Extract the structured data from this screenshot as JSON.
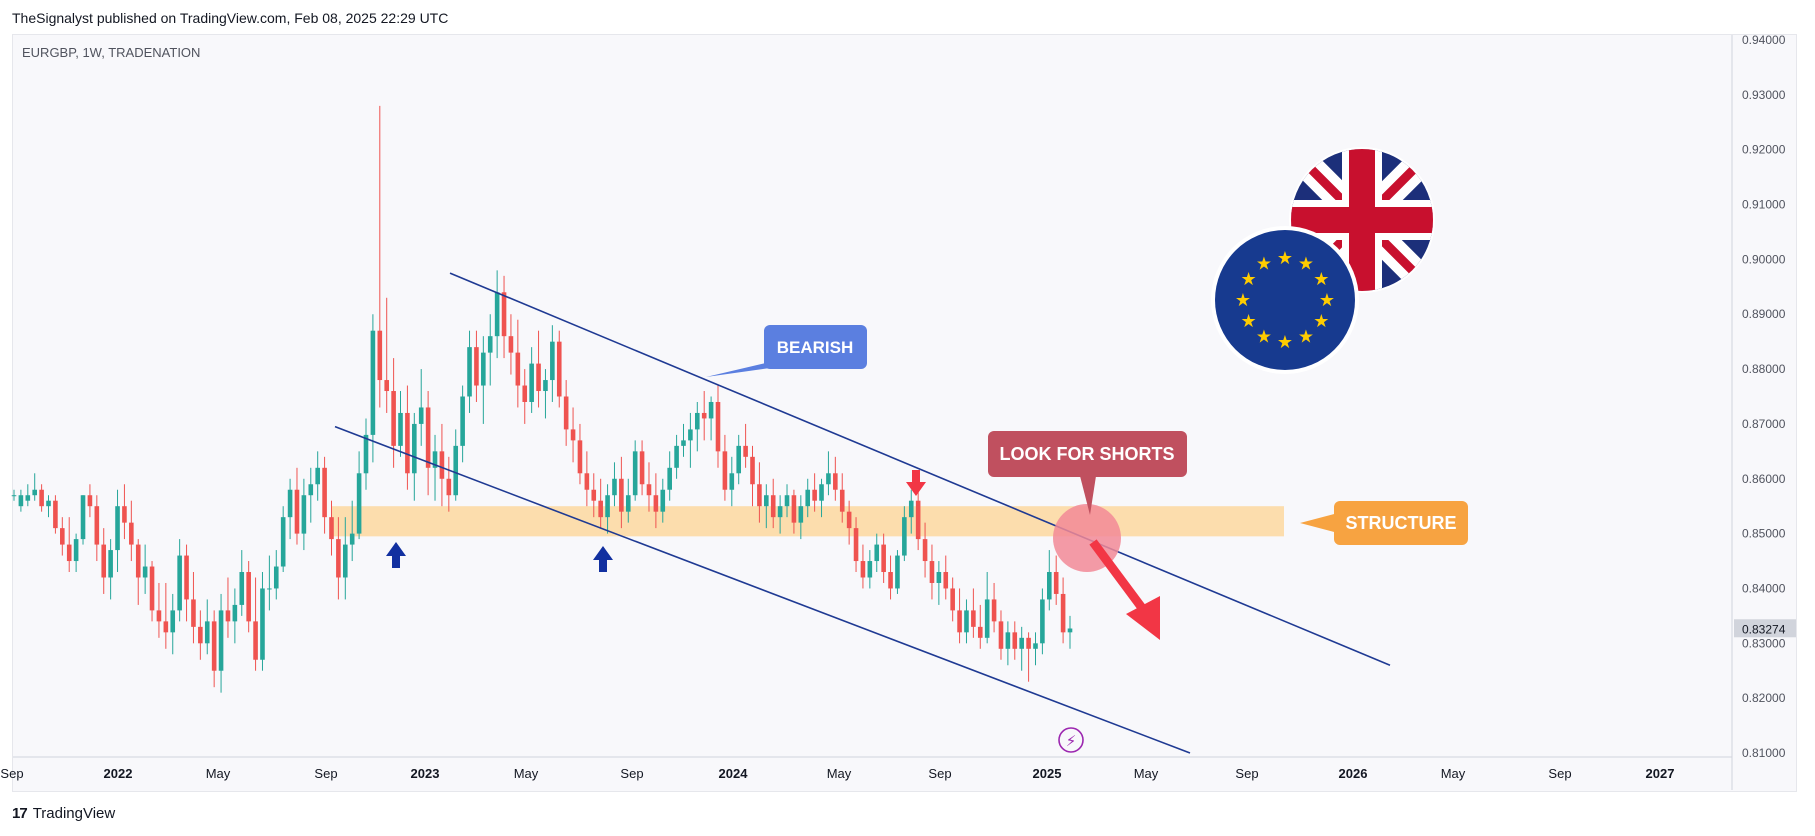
{
  "header": {
    "text": "TheSignalyst published on TradingView.com, Feb 08, 2025 22:29 UTC"
  },
  "symbol": {
    "text": "EURGBP, 1W, TRADENATION"
  },
  "footer": {
    "logo": "17",
    "brand": "TradingView"
  },
  "colors": {
    "up": "#26a69a",
    "down": "#ef5350",
    "channel": "#1f3a93",
    "structure": "#fcd9a4",
    "bearish_box": "#5b7fe0",
    "shorts_box": "#c0505f",
    "structure_label": "#f7a341",
    "arrow_red": "#f23645",
    "arrow_blue": "#1230a0"
  },
  "annotations": {
    "bearish": "BEARISH",
    "look_for_shorts": "LOOK FOR SHORTS",
    "structure": "STRUCTURE"
  },
  "chart_data": {
    "type": "candlestick",
    "title": "EURGBP, 1W, TRADENATION",
    "y_ticks": [
      "0.94000",
      "0.93000",
      "0.92000",
      "0.91000",
      "0.90000",
      "0.89000",
      "0.88000",
      "0.87000",
      "0.86000",
      "0.85000",
      "0.84000",
      "0.83000",
      "0.82000",
      "0.81000"
    ],
    "x_ticks": [
      "Sep",
      "2022",
      "May",
      "Sep",
      "2023",
      "May",
      "Sep",
      "2024",
      "May",
      "Sep",
      "2025",
      "May",
      "Sep",
      "2026",
      "May",
      "Sep",
      "2027"
    ],
    "last_price": "0.83274",
    "ylim": [
      0.81,
      0.94
    ],
    "structure_zone": [
      0.8495,
      0.855
    ],
    "channel_upper": {
      "from": [
        "2023-01",
        0.8975
      ],
      "to": [
        "2025-12",
        0.826
      ]
    },
    "channel_lower": {
      "from": [
        "2022-09",
        0.8695
      ],
      "to": [
        "2025-05",
        0.81
      ]
    },
    "candles": [
      [
        0.857,
        0.858,
        0.856,
        0.857
      ],
      [
        0.855,
        0.858,
        0.854,
        0.857
      ],
      [
        0.856,
        0.859,
        0.855,
        0.857
      ],
      [
        0.857,
        0.861,
        0.856,
        0.858
      ],
      [
        0.858,
        0.859,
        0.854,
        0.855
      ],
      [
        0.855,
        0.857,
        0.853,
        0.856
      ],
      [
        0.856,
        0.857,
        0.85,
        0.851
      ],
      [
        0.851,
        0.853,
        0.846,
        0.848
      ],
      [
        0.848,
        0.853,
        0.843,
        0.845
      ],
      [
        0.845,
        0.85,
        0.843,
        0.849
      ],
      [
        0.849,
        0.857,
        0.848,
        0.857
      ],
      [
        0.857,
        0.859,
        0.853,
        0.855
      ],
      [
        0.855,
        0.857,
        0.845,
        0.848
      ],
      [
        0.848,
        0.851,
        0.839,
        0.842
      ],
      [
        0.842,
        0.849,
        0.838,
        0.847
      ],
      [
        0.847,
        0.858,
        0.843,
        0.855
      ],
      [
        0.855,
        0.859,
        0.849,
        0.852
      ],
      [
        0.852,
        0.856,
        0.845,
        0.848
      ],
      [
        0.848,
        0.849,
        0.837,
        0.842
      ],
      [
        0.842,
        0.848,
        0.839,
        0.844
      ],
      [
        0.844,
        0.845,
        0.834,
        0.836
      ],
      [
        0.836,
        0.841,
        0.831,
        0.834
      ],
      [
        0.834,
        0.841,
        0.829,
        0.832
      ],
      [
        0.832,
        0.839,
        0.828,
        0.836
      ],
      [
        0.836,
        0.849,
        0.834,
        0.846
      ],
      [
        0.846,
        0.848,
        0.834,
        0.838
      ],
      [
        0.838,
        0.843,
        0.83,
        0.833
      ],
      [
        0.833,
        0.836,
        0.827,
        0.83
      ],
      [
        0.83,
        0.838,
        0.828,
        0.834
      ],
      [
        0.834,
        0.836,
        0.822,
        0.825
      ],
      [
        0.825,
        0.839,
        0.821,
        0.836
      ],
      [
        0.836,
        0.842,
        0.831,
        0.834
      ],
      [
        0.834,
        0.84,
        0.83,
        0.837
      ],
      [
        0.837,
        0.847,
        0.835,
        0.843
      ],
      [
        0.843,
        0.845,
        0.832,
        0.834
      ],
      [
        0.834,
        0.842,
        0.825,
        0.827
      ],
      [
        0.827,
        0.843,
        0.825,
        0.84
      ],
      [
        0.84,
        0.846,
        0.836,
        0.84
      ],
      [
        0.84,
        0.847,
        0.838,
        0.844
      ],
      [
        0.844,
        0.855,
        0.843,
        0.853
      ],
      [
        0.853,
        0.86,
        0.849,
        0.858
      ],
      [
        0.858,
        0.862,
        0.848,
        0.85
      ],
      [
        0.85,
        0.86,
        0.847,
        0.857
      ],
      [
        0.857,
        0.862,
        0.852,
        0.859
      ],
      [
        0.859,
        0.865,
        0.856,
        0.862
      ],
      [
        0.862,
        0.864,
        0.85,
        0.853
      ],
      [
        0.853,
        0.856,
        0.846,
        0.849
      ],
      [
        0.849,
        0.853,
        0.838,
        0.842
      ],
      [
        0.842,
        0.853,
        0.838,
        0.848
      ],
      [
        0.848,
        0.856,
        0.845,
        0.85
      ],
      [
        0.85,
        0.865,
        0.849,
        0.861
      ],
      [
        0.861,
        0.871,
        0.858,
        0.868
      ],
      [
        0.868,
        0.89,
        0.863,
        0.887
      ],
      [
        0.887,
        0.928,
        0.873,
        0.878
      ],
      [
        0.878,
        0.893,
        0.872,
        0.876
      ],
      [
        0.876,
        0.882,
        0.862,
        0.866
      ],
      [
        0.866,
        0.876,
        0.864,
        0.872
      ],
      [
        0.872,
        0.877,
        0.858,
        0.861
      ],
      [
        0.861,
        0.872,
        0.856,
        0.87
      ],
      [
        0.87,
        0.88,
        0.866,
        0.873
      ],
      [
        0.873,
        0.876,
        0.857,
        0.862
      ],
      [
        0.862,
        0.868,
        0.856,
        0.865
      ],
      [
        0.865,
        0.87,
        0.855,
        0.86
      ],
      [
        0.86,
        0.864,
        0.854,
        0.857
      ],
      [
        0.857,
        0.869,
        0.856,
        0.866
      ],
      [
        0.866,
        0.877,
        0.863,
        0.875
      ],
      [
        0.875,
        0.887,
        0.872,
        0.884
      ],
      [
        0.884,
        0.887,
        0.874,
        0.877
      ],
      [
        0.877,
        0.886,
        0.87,
        0.883
      ],
      [
        0.883,
        0.89,
        0.877,
        0.886
      ],
      [
        0.886,
        0.898,
        0.882,
        0.894
      ],
      [
        0.894,
        0.897,
        0.882,
        0.886
      ],
      [
        0.886,
        0.89,
        0.879,
        0.883
      ],
      [
        0.883,
        0.889,
        0.873,
        0.877
      ],
      [
        0.877,
        0.88,
        0.87,
        0.874
      ],
      [
        0.874,
        0.884,
        0.872,
        0.881
      ],
      [
        0.881,
        0.887,
        0.873,
        0.876
      ],
      [
        0.876,
        0.88,
        0.871,
        0.878
      ],
      [
        0.878,
        0.888,
        0.874,
        0.885
      ],
      [
        0.885,
        0.887,
        0.873,
        0.875
      ],
      [
        0.875,
        0.878,
        0.866,
        0.869
      ],
      [
        0.869,
        0.873,
        0.863,
        0.867
      ],
      [
        0.867,
        0.87,
        0.859,
        0.861
      ],
      [
        0.861,
        0.865,
        0.855,
        0.858
      ],
      [
        0.858,
        0.861,
        0.853,
        0.856
      ],
      [
        0.856,
        0.86,
        0.851,
        0.853
      ],
      [
        0.853,
        0.859,
        0.85,
        0.857
      ],
      [
        0.857,
        0.863,
        0.855,
        0.86
      ],
      [
        0.86,
        0.864,
        0.851,
        0.854
      ],
      [
        0.854,
        0.86,
        0.852,
        0.857
      ],
      [
        0.857,
        0.867,
        0.856,
        0.865
      ],
      [
        0.865,
        0.867,
        0.857,
        0.859
      ],
      [
        0.859,
        0.863,
        0.854,
        0.857
      ],
      [
        0.857,
        0.861,
        0.851,
        0.854
      ],
      [
        0.854,
        0.86,
        0.852,
        0.858
      ],
      [
        0.858,
        0.865,
        0.856,
        0.862
      ],
      [
        0.862,
        0.868,
        0.86,
        0.866
      ],
      [
        0.866,
        0.87,
        0.864,
        0.867
      ],
      [
        0.867,
        0.872,
        0.862,
        0.869
      ],
      [
        0.869,
        0.874,
        0.865,
        0.872
      ],
      [
        0.872,
        0.876,
        0.867,
        0.871
      ],
      [
        0.871,
        0.875,
        0.867,
        0.874
      ],
      [
        0.874,
        0.877,
        0.862,
        0.865
      ],
      [
        0.865,
        0.868,
        0.856,
        0.858
      ],
      [
        0.858,
        0.864,
        0.855,
        0.861
      ],
      [
        0.861,
        0.868,
        0.859,
        0.866
      ],
      [
        0.866,
        0.87,
        0.862,
        0.864
      ],
      [
        0.864,
        0.866,
        0.855,
        0.859
      ],
      [
        0.859,
        0.863,
        0.852,
        0.855
      ],
      [
        0.855,
        0.859,
        0.851,
        0.857
      ],
      [
        0.857,
        0.86,
        0.851,
        0.853
      ],
      [
        0.853,
        0.857,
        0.85,
        0.855
      ],
      [
        0.855,
        0.859,
        0.853,
        0.857
      ],
      [
        0.857,
        0.858,
        0.85,
        0.852
      ],
      [
        0.852,
        0.857,
        0.849,
        0.855
      ],
      [
        0.855,
        0.86,
        0.853,
        0.858
      ],
      [
        0.858,
        0.861,
        0.854,
        0.856
      ],
      [
        0.856,
        0.86,
        0.853,
        0.859
      ],
      [
        0.859,
        0.865,
        0.857,
        0.861
      ],
      [
        0.861,
        0.864,
        0.856,
        0.858
      ],
      [
        0.858,
        0.861,
        0.852,
        0.854
      ],
      [
        0.854,
        0.856,
        0.848,
        0.851
      ],
      [
        0.851,
        0.853,
        0.843,
        0.845
      ],
      [
        0.845,
        0.848,
        0.84,
        0.842
      ],
      [
        0.842,
        0.847,
        0.84,
        0.845
      ],
      [
        0.845,
        0.85,
        0.843,
        0.848
      ],
      [
        0.848,
        0.85,
        0.841,
        0.843
      ],
      [
        0.843,
        0.846,
        0.838,
        0.84
      ],
      [
        0.84,
        0.847,
        0.839,
        0.846
      ],
      [
        0.846,
        0.855,
        0.845,
        0.853
      ],
      [
        0.853,
        0.858,
        0.85,
        0.856
      ],
      [
        0.856,
        0.859,
        0.847,
        0.849
      ],
      [
        0.849,
        0.852,
        0.842,
        0.845
      ],
      [
        0.845,
        0.848,
        0.838,
        0.841
      ],
      [
        0.841,
        0.845,
        0.837,
        0.843
      ],
      [
        0.843,
        0.846,
        0.838,
        0.84
      ],
      [
        0.84,
        0.842,
        0.834,
        0.836
      ],
      [
        0.836,
        0.84,
        0.83,
        0.832
      ],
      [
        0.832,
        0.838,
        0.83,
        0.836
      ],
      [
        0.836,
        0.84,
        0.831,
        0.833
      ],
      [
        0.833,
        0.837,
        0.829,
        0.831
      ],
      [
        0.831,
        0.843,
        0.83,
        0.838
      ],
      [
        0.838,
        0.841,
        0.832,
        0.834
      ],
      [
        0.834,
        0.836,
        0.827,
        0.829
      ],
      [
        0.829,
        0.834,
        0.826,
        0.832
      ],
      [
        0.832,
        0.834,
        0.827,
        0.829
      ],
      [
        0.829,
        0.833,
        0.825,
        0.831
      ],
      [
        0.831,
        0.832,
        0.823,
        0.829
      ],
      [
        0.829,
        0.832,
        0.826,
        0.83
      ],
      [
        0.83,
        0.84,
        0.828,
        0.838
      ],
      [
        0.838,
        0.847,
        0.836,
        0.843
      ],
      [
        0.843,
        0.846,
        0.837,
        0.839
      ],
      [
        0.839,
        0.842,
        0.83,
        0.832
      ],
      [
        0.832,
        0.835,
        0.829,
        0.8327
      ]
    ]
  }
}
